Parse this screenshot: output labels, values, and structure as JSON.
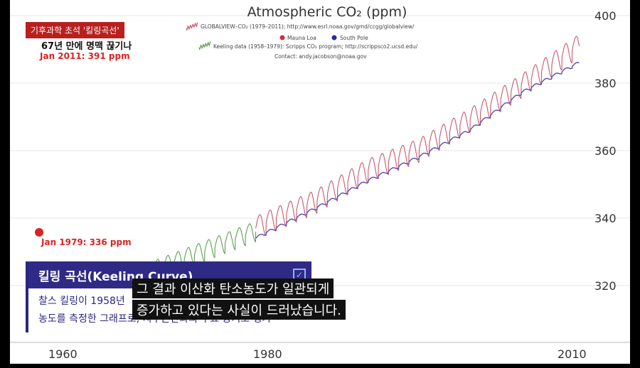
{
  "chart_data": {
    "type": "line",
    "title": "Atmospheric CO₂ (ppm)",
    "legend": [
      "GLOBALVIEW–CO₂ (1979–2011); http://www.esrl.noaa.gov/gmd/ccgg/globalview/",
      "Keeling data (1958–1979): Scripps CO₂ program; http://scrippsco2.ucsd.edu/",
      "Contact: andy.jacobson@noaa.gov"
    ],
    "legend_points": [
      "Mauna Loa",
      "South Pole"
    ],
    "x_ticks": [
      1960,
      1980,
      2010
    ],
    "y_ticks": [
      320,
      340,
      360,
      380,
      400
    ],
    "xlim": [
      1956,
      2011
    ],
    "ylim": [
      314,
      402
    ],
    "grid": true,
    "series": [
      {
        "name": "Keeling data (1958–1979)",
        "color": "#5aa050",
        "x": [
          1967,
          1979
        ],
        "y": [
          322,
          336
        ],
        "seasonal_amplitude": 3
      },
      {
        "name": "Mauna Loa",
        "color": "#c7596f",
        "x": [
          1979,
          1985,
          1990,
          1995,
          2000,
          2005,
          2010.7
        ],
        "y": [
          337,
          345,
          354,
          360,
          369,
          379,
          391
        ],
        "seasonal_amplitude": 3.5
      },
      {
        "name": "South Pole",
        "color": "#5a4ea6",
        "x": [
          1979,
          1985,
          1990,
          1995,
          2000,
          2005,
          2010.7
        ],
        "y": [
          334,
          343,
          351,
          358,
          366,
          377,
          386
        ],
        "seasonal_amplitude": 0.5
      }
    ],
    "markers": [
      {
        "label": "Jan 1979: 336 ppm",
        "x": 1958.1,
        "y": 336,
        "color": "#d22"
      },
      {
        "label": "Jan 2011: 391 ppm",
        "x": 2011,
        "y": 391,
        "color": "#d22"
      }
    ]
  },
  "news": {
    "tag": "기후과학 초석 '킬링곡선'",
    "tag_sub": "67년 만에 명맥 끊기나",
    "infobox_title": "킬링 곡선(Keeling Curve)",
    "infobox_line1": "찰스 킬링이 1958년",
    "infobox_line2": "농도를 측정한 그래프로, 지구온난화의 주요 증거로 평가",
    "subtitle_line1": "그 결과 이산화 탄소농도가 일관되게",
    "subtitle_line2": "증가하고 있다는 사실이 드러났습니다."
  }
}
